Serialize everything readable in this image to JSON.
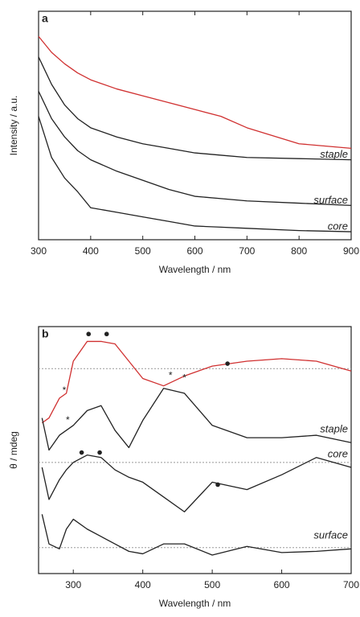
{
  "chart_data": [
    {
      "type": "line",
      "panel_label": "a",
      "xlabel": "Wavelength / nm",
      "ylabel": "Intensity / a.u.",
      "x": [
        300,
        325,
        350,
        375,
        400,
        450,
        500,
        550,
        600,
        650,
        700,
        800,
        900
      ],
      "xlim": [
        300,
        900
      ],
      "xticks": [
        300,
        400,
        500,
        600,
        700,
        800,
        900
      ],
      "ylim": [
        0,
        10
      ],
      "series": [
        {
          "color": "#d03030",
          "values": [
            8.9,
            8.2,
            7.7,
            7.3,
            7.0,
            6.6,
            6.3,
            6.0,
            5.7,
            5.4,
            4.9,
            4.2,
            4.0
          ]
        },
        {
          "name": "staple",
          "color": "#222222",
          "values": [
            8.0,
            6.8,
            5.9,
            5.3,
            4.9,
            4.5,
            4.2,
            4.0,
            3.8,
            3.7,
            3.6,
            3.55,
            3.5
          ]
        },
        {
          "name": "surface",
          "color": "#222222",
          "values": [
            6.5,
            5.3,
            4.5,
            3.9,
            3.5,
            3.0,
            2.6,
            2.2,
            1.9,
            1.8,
            1.7,
            1.6,
            1.5
          ]
        },
        {
          "name": "core",
          "color": "#222222",
          "values": [
            5.4,
            3.6,
            2.7,
            2.1,
            1.4,
            1.2,
            1.0,
            0.8,
            0.6,
            0.55,
            0.5,
            0.4,
            0.35
          ]
        }
      ]
    },
    {
      "type": "line",
      "panel_label": "b",
      "xlabel": "Wavelength / nm",
      "ylabel": "θ / mdeg",
      "x": [
        255,
        265,
        280,
        290,
        300,
        320,
        340,
        360,
        380,
        400,
        430,
        460,
        500,
        550,
        600,
        650,
        700
      ],
      "xlim": [
        250,
        700
      ],
      "xticks": [
        300,
        400,
        500,
        600,
        700
      ],
      "ylim": [
        0,
        10
      ],
      "reference_lines": [
        8.3,
        4.5,
        1.05
      ],
      "series": [
        {
          "color": "#d03030",
          "values": [
            6.1,
            6.3,
            7.1,
            7.3,
            8.6,
            9.4,
            9.4,
            9.3,
            8.6,
            7.9,
            7.6,
            8.0,
            8.4,
            8.6,
            8.7,
            8.6,
            8.2
          ]
        },
        {
          "name": "staple",
          "color": "#222222",
          "values": [
            6.3,
            5.0,
            5.6,
            5.8,
            6.0,
            6.6,
            6.8,
            5.8,
            5.1,
            6.2,
            7.5,
            7.3,
            6.0,
            5.5,
            5.5,
            5.6,
            5.3
          ]
        },
        {
          "name": "core",
          "color": "#222222",
          "values": [
            4.3,
            3.0,
            3.8,
            4.2,
            4.5,
            4.8,
            4.7,
            4.2,
            3.9,
            3.7,
            3.1,
            2.5,
            3.7,
            3.4,
            4.0,
            4.7,
            4.3
          ]
        },
        {
          "name": "surface",
          "color": "#222222",
          "values": [
            2.4,
            1.2,
            1.0,
            1.8,
            2.2,
            1.8,
            1.5,
            1.2,
            0.9,
            0.8,
            1.2,
            1.2,
            0.75,
            1.1,
            0.85,
            0.9,
            1.0
          ]
        }
      ],
      "annotations": [
        {
          "text": "*",
          "x": 287,
          "y": 7.5
        },
        {
          "text": "*",
          "x": 460,
          "y": 8.0
        },
        {
          "text": "*",
          "x": 292,
          "y": 6.3
        },
        {
          "text": "*",
          "x": 440,
          "y": 8.1
        }
      ],
      "dots": [
        {
          "x": 322,
          "y": 9.7
        },
        {
          "x": 348,
          "y": 9.7
        },
        {
          "x": 522,
          "y": 8.5
        },
        {
          "x": 312,
          "y": 4.9
        },
        {
          "x": 338,
          "y": 4.9
        },
        {
          "x": 508,
          "y": 3.6
        }
      ]
    }
  ]
}
